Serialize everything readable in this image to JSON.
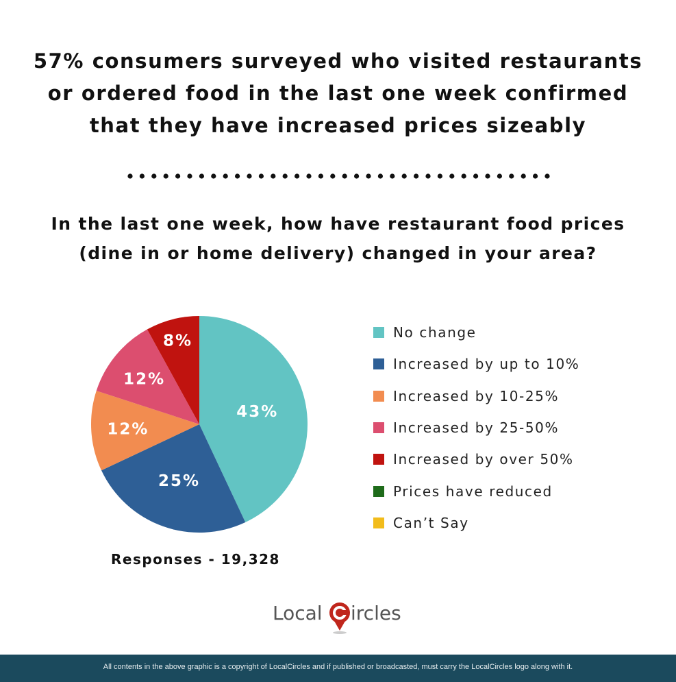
{
  "header": {
    "title_lines": [
      "57% consumers surveyed who visited restaurants",
      "or ordered food in the last one week confirmed",
      "that they have increased prices sizeably"
    ],
    "question_lines": [
      "In the last one week, how have restaurant food prices",
      "(dine in or home delivery) changed in your area?"
    ]
  },
  "chart_data": {
    "type": "pie",
    "categories": [
      "No change",
      "Increased by up to 10%",
      "Increased by 10-25%",
      "Increased by 25-50%",
      "Increased by over 50%",
      "Prices have reduced",
      "Can’t Say"
    ],
    "values": [
      43,
      25,
      12,
      12,
      8,
      0,
      0
    ],
    "data_labels": [
      "43%",
      "25%",
      "12%",
      "12%",
      "8%",
      "",
      ""
    ],
    "colors": [
      "#62c4c3",
      "#2e5f96",
      "#f28c50",
      "#dc4e6f",
      "#c0130f",
      "#1e6b1a",
      "#f2bc1b"
    ],
    "start": "top, clockwise",
    "legend_position": "right"
  },
  "responses": "Responses - 19,328",
  "logo": {
    "text_left": "Local",
    "text_right": "ircles"
  },
  "footer": "All contents in the above graphic is a copyright of LocalCircles and if published or broadcasted, must carry the LocalCircles logo along with it."
}
